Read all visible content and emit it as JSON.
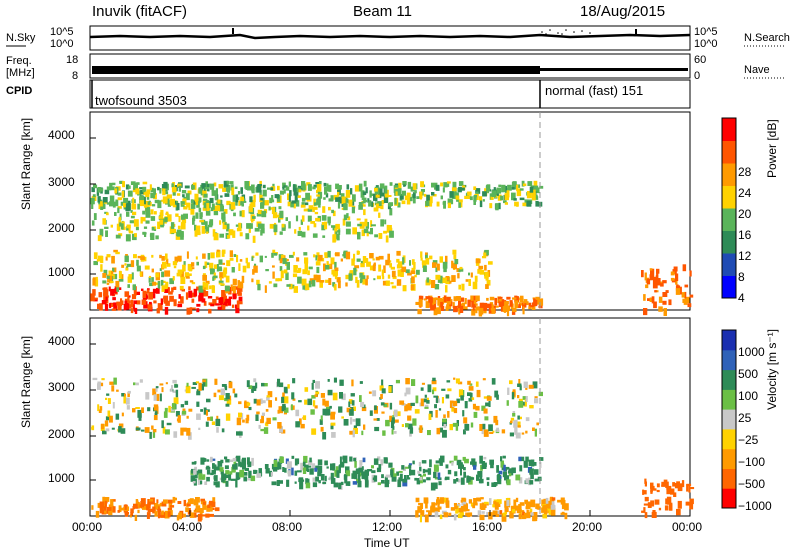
{
  "header": {
    "station": "Inuvik (fitACF)",
    "beam": "Beam 11",
    "date": "18/Aug/2015"
  },
  "strip_panels": {
    "nsky": {
      "label": "N.Sky",
      "ticks": [
        "10^5",
        "10^0"
      ],
      "right_label": "N.Search",
      "right_ticks": [
        "10^5",
        "10^0"
      ]
    },
    "freq": {
      "label_top": "Freq.",
      "label_bottom": "[MHz]",
      "ticks": [
        "18",
        "8"
      ],
      "right_label": "Nave",
      "right_ticks": [
        "60",
        "0"
      ]
    },
    "cpid": {
      "label": "CPID",
      "modes": [
        {
          "name": "twofsound 3503",
          "start_hour": 0,
          "end_hour": 18
        },
        {
          "name": "normal (fast) 151",
          "start_hour": 18,
          "end_hour": 24
        }
      ]
    }
  },
  "power_panel": {
    "ylabel": "Slant Range [km]",
    "yticks": [
      "4000",
      "3000",
      "2000",
      "1000"
    ],
    "colorbar_label": "Power [dB]",
    "colorbar_ticks": [
      "28",
      "24",
      "20",
      "16",
      "12",
      "8",
      "4"
    ],
    "colorbar_colors": [
      "#0000ff",
      "#1f4bb4",
      "#2e8b57",
      "#5ab45a",
      "#ffd200",
      "#ff9a00",
      "#ff5500",
      "#ff0000"
    ]
  },
  "velocity_panel": {
    "ylabel": "Slant Range [km]",
    "yticks": [
      "4000",
      "3000",
      "2000",
      "1000"
    ],
    "colorbar_label": "Velocity [m s⁻¹]",
    "colorbar_ticks": [
      "1000",
      "500",
      "100",
      "25",
      "−25",
      "−100",
      "−500",
      "−1000"
    ],
    "colorbar_colors": [
      "#1a2fb0",
      "#2f62b8",
      "#2e8b57",
      "#6bbf45",
      "#c8c8c8",
      "#ffd200",
      "#ff9a00",
      "#ff6600",
      "#ff0000"
    ]
  },
  "xaxis": {
    "label": "Time UT",
    "ticks": [
      "00:00",
      "04:00",
      "08:00",
      "12:00",
      "16:00",
      "20:00",
      "00:00"
    ]
  },
  "chart_data": {
    "type": "heatmap",
    "title": "",
    "xlabel": "Time UT",
    "ylabel": "Slant Range [km]",
    "xlim": [
      "00:00",
      "24:00"
    ],
    "ylim": [
      180,
      4500
    ],
    "mode_change_hour": 18,
    "power_echo_bands_db": [
      {
        "range_km": [
          200,
          700
        ],
        "hours": [
          0,
          6
        ],
        "power_db": 28
      },
      {
        "range_km": [
          200,
          500
        ],
        "hours": [
          13,
          18
        ],
        "power_db": 24
      },
      {
        "range_km": [
          700,
          1500
        ],
        "hours": [
          0,
          16
        ],
        "power_db": 18
      },
      {
        "range_km": [
          1800,
          2600
        ],
        "hours": [
          0,
          12
        ],
        "power_db": 16
      },
      {
        "range_km": [
          2500,
          3000
        ],
        "hours": [
          0,
          18
        ],
        "power_db": 14
      },
      {
        "range_km": [
          200,
          1200
        ],
        "hours": [
          22,
          24
        ],
        "power_db": 24
      }
    ],
    "velocity_echo_bands_ms": [
      {
        "range_km": [
          2000,
          3200
        ],
        "hours": [
          0,
          18
        ],
        "velocity_ms": 0
      },
      {
        "range_km": [
          900,
          1500
        ],
        "hours": [
          4,
          18
        ],
        "velocity_ms": 150
      },
      {
        "range_km": [
          200,
          600
        ],
        "hours": [
          0,
          5
        ],
        "velocity_ms": -300
      },
      {
        "range_km": [
          200,
          600
        ],
        "hours": [
          13,
          19
        ],
        "velocity_ms": -150
      },
      {
        "range_km": [
          200,
          1000
        ],
        "hours": [
          22,
          24
        ],
        "velocity_ms": -600
      }
    ]
  }
}
